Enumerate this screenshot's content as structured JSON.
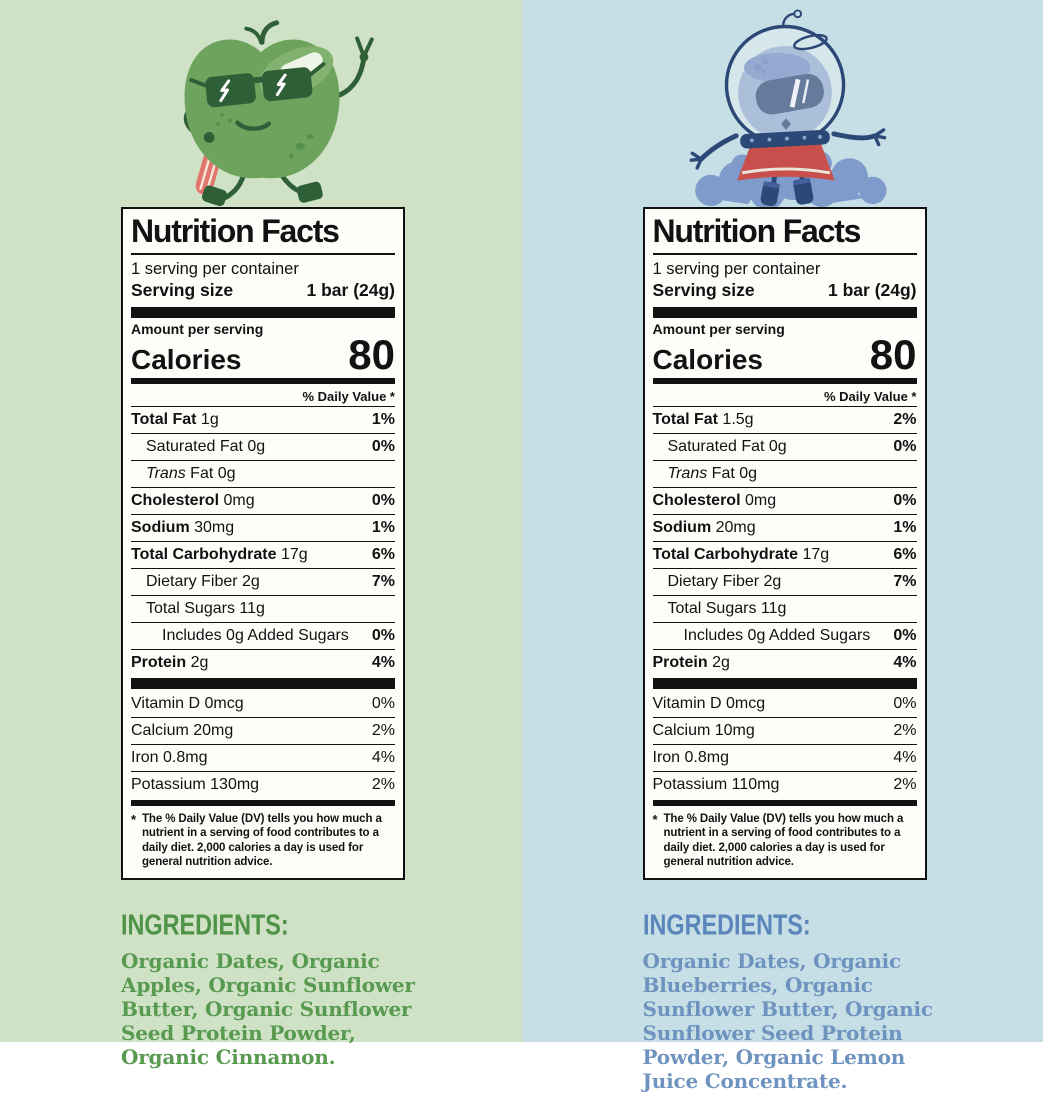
{
  "page": {
    "left_background": "#cfe2c5",
    "right_background": "#c6dee5",
    "label_ink": "#121212",
    "panel_background": "#fdfdf9"
  },
  "panels": [
    {
      "flavor": "apple",
      "character": "apple-mascot-sunglasses-peace-sign-cinnamon-stick",
      "colors": {
        "background": "#cfe2c5",
        "ingredients_heading": "#4e9347",
        "ingredients_text": "#579a50",
        "mascot_body": "#6da35c",
        "mascot_dark": "#2f5f37",
        "cinnamon_stick": "#e0766e"
      },
      "nutrition": {
        "title": "Nutrition Facts",
        "servings_line": "1 serving per container",
        "serving_size_label": "Serving size",
        "serving_size_value": "1 bar (24g)",
        "amount_per_serving": "Amount per serving",
        "calories_label": "Calories",
        "calories_value": "80",
        "daily_value_header": "% Daily Value *",
        "main_rows": [
          {
            "b": "Total Fat",
            "i": "",
            "r": " 1g",
            "dv": "1%",
            "dv_bold": true,
            "indent": 0
          },
          {
            "b": "",
            "i": "",
            "r": "Saturated Fat 0g",
            "dv": "0%",
            "dv_bold": true,
            "indent": 1
          },
          {
            "b": "",
            "i": "Trans",
            "r": " Fat 0g",
            "dv": "",
            "dv_bold": false,
            "indent": 1
          },
          {
            "b": "Cholesterol",
            "i": "",
            "r": " 0mg",
            "dv": "0%",
            "dv_bold": true,
            "indent": 0
          },
          {
            "b": "Sodium",
            "i": "",
            "r": " 30mg",
            "dv": "1%",
            "dv_bold": true,
            "indent": 0
          },
          {
            "b": "Total Carbohydrate",
            "i": "",
            "r": " 17g",
            "dv": "6%",
            "dv_bold": true,
            "indent": 0
          },
          {
            "b": "",
            "i": "",
            "r": "Dietary Fiber 2g",
            "dv": "7%",
            "dv_bold": true,
            "indent": 1
          },
          {
            "b": "",
            "i": "",
            "r": "Total Sugars 11g",
            "dv": "",
            "dv_bold": false,
            "indent": 1
          },
          {
            "b": "",
            "i": "",
            "r": "Includes 0g Added Sugars",
            "dv": "0%",
            "dv_bold": true,
            "indent": 2
          },
          {
            "b": "Protein",
            "i": "",
            "r": " 2g",
            "dv": "4%",
            "dv_bold": true,
            "indent": 0
          }
        ],
        "vitamin_rows": [
          {
            "b": "",
            "i": "",
            "r": "Vitamin D 0mcg",
            "dv": "0%",
            "dv_bold": false,
            "indent": 0
          },
          {
            "b": "",
            "i": "",
            "r": "Calcium 20mg",
            "dv": "2%",
            "dv_bold": false,
            "indent": 0
          },
          {
            "b": "",
            "i": "",
            "r": "Iron 0.8mg",
            "dv": "4%",
            "dv_bold": false,
            "indent": 0
          },
          {
            "b": "",
            "i": "",
            "r": "Potassium 130mg",
            "dv": "2%",
            "dv_bold": false,
            "indent": 0
          }
        ],
        "footnote_symbol": "*",
        "footnote": "The % Daily Value (DV) tells you how much a nutrient in a serving of food contributes to a daily diet. 2,000 calories a day is used for general nutrition advice."
      },
      "ingredients": {
        "heading": "INGREDIENTS:",
        "text": "Organic Dates, Organic Apples, Organic Sunflower Butter, Organic Sunflower Seed Protein Powder, Organic Cinnamon."
      }
    },
    {
      "flavor": "blueberry",
      "character": "blueberry-astronaut-mascot-rocket-launch-cloud",
      "colors": {
        "background": "#c6dee5",
        "ingredients_heading": "#5b86bb",
        "ingredients_text": "#6e93bf",
        "mascot_body": "#8ba6cc",
        "mascot_dark": "#2c4877",
        "skirt_red": "#c94f4c",
        "smoke_blue": "#7e9bcb"
      },
      "nutrition": {
        "title": "Nutrition Facts",
        "servings_line": "1 serving per container",
        "serving_size_label": "Serving size",
        "serving_size_value": "1 bar (24g)",
        "amount_per_serving": "Amount per serving",
        "calories_label": "Calories",
        "calories_value": "80",
        "daily_value_header": "% Daily Value *",
        "main_rows": [
          {
            "b": "Total Fat",
            "i": "",
            "r": " 1.5g",
            "dv": "2%",
            "dv_bold": true,
            "indent": 0
          },
          {
            "b": "",
            "i": "",
            "r": "Saturated Fat 0g",
            "dv": "0%",
            "dv_bold": true,
            "indent": 1
          },
          {
            "b": "",
            "i": "Trans",
            "r": " Fat 0g",
            "dv": "",
            "dv_bold": false,
            "indent": 1
          },
          {
            "b": "Cholesterol",
            "i": "",
            "r": " 0mg",
            "dv": "0%",
            "dv_bold": true,
            "indent": 0
          },
          {
            "b": "Sodium",
            "i": "",
            "r": " 20mg",
            "dv": "1%",
            "dv_bold": true,
            "indent": 0
          },
          {
            "b": "Total Carbohydrate",
            "i": "",
            "r": " 17g",
            "dv": "6%",
            "dv_bold": true,
            "indent": 0
          },
          {
            "b": "",
            "i": "",
            "r": "Dietary Fiber 2g",
            "dv": "7%",
            "dv_bold": true,
            "indent": 1
          },
          {
            "b": "",
            "i": "",
            "r": "Total Sugars 11g",
            "dv": "",
            "dv_bold": false,
            "indent": 1
          },
          {
            "b": "",
            "i": "",
            "r": "Includes 0g Added Sugars",
            "dv": "0%",
            "dv_bold": true,
            "indent": 2
          },
          {
            "b": "Protein",
            "i": "",
            "r": " 2g",
            "dv": "4%",
            "dv_bold": true,
            "indent": 0
          }
        ],
        "vitamin_rows": [
          {
            "b": "",
            "i": "",
            "r": "Vitamin D 0mcg",
            "dv": "0%",
            "dv_bold": false,
            "indent": 0
          },
          {
            "b": "",
            "i": "",
            "r": "Calcium 10mg",
            "dv": "2%",
            "dv_bold": false,
            "indent": 0
          },
          {
            "b": "",
            "i": "",
            "r": "Iron 0.8mg",
            "dv": "4%",
            "dv_bold": false,
            "indent": 0
          },
          {
            "b": "",
            "i": "",
            "r": "Potassium 110mg",
            "dv": "2%",
            "dv_bold": false,
            "indent": 0
          }
        ],
        "footnote_symbol": "*",
        "footnote": "The % Daily Value (DV) tells you how much a nutrient in a serving of food contributes to a daily diet. 2,000 calories a day is used for general nutrition advice."
      },
      "ingredients": {
        "heading": "INGREDIENTS:",
        "text": "Organic Dates, Organic Blueberries, Organic Sunflower Butter, Organic Sunflower Seed Protein Powder, Organic Lemon Juice Concentrate."
      }
    }
  ]
}
